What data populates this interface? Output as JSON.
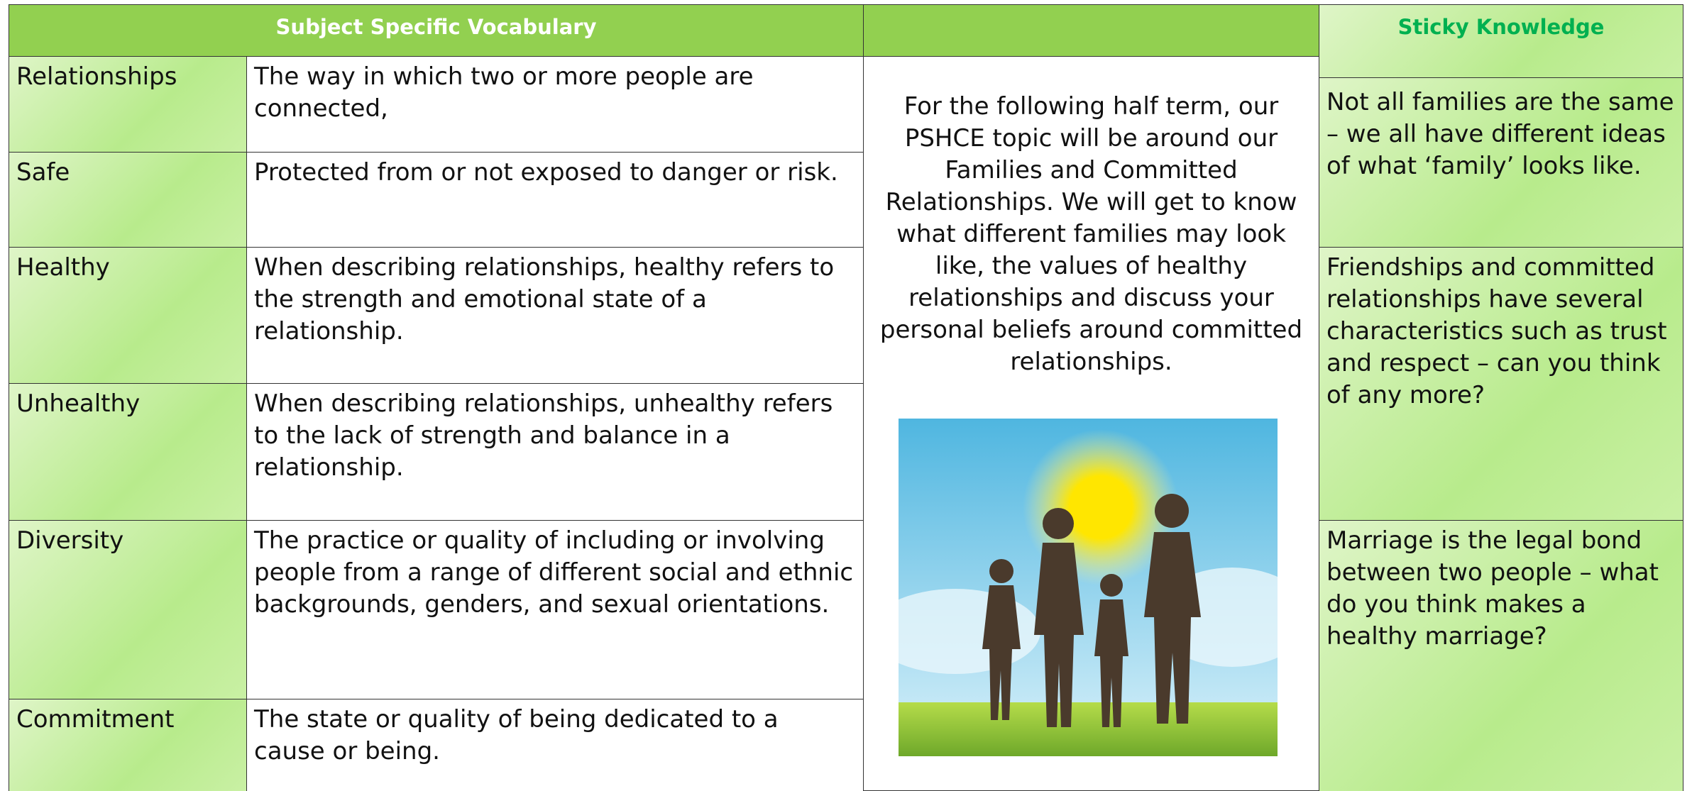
{
  "header": {
    "vocab_title": "Subject Specific Vocabulary",
    "knowledge_title": "Sticky Knowledge"
  },
  "vocabulary": [
    {
      "term": "Relationships",
      "definition": "The way in which two or more people are connected,"
    },
    {
      "term": "Safe",
      "definition": "Protected from or not exposed to danger or risk."
    },
    {
      "term": "Healthy",
      "definition": "When describing relationships, healthy refers to the strength and emotional state of a relationship."
    },
    {
      "term": "Unhealthy",
      "definition": "When describing relationships, unhealthy refers to the lack of strength and balance in a relationship."
    },
    {
      "term": "Diversity",
      "definition": "The practice or quality of including or involving people from a range of different social and ethnic backgrounds, genders, and sexual orientations."
    },
    {
      "term": "Commitment",
      "definition": "The state or quality of being dedicated to a cause or being."
    }
  ],
  "intro": "For the following half term, our PSHCE topic will be around our Families and Committed Relationships. We will get to know what different families may look like, the values of healthy relationships and discuss your personal beliefs around committed relationships.",
  "knowledge": [
    "Not all families are the same – we all have different ideas of what ‘family’ looks like.",
    "Friendships and committed relationships have several characteristics such as trust and respect – can you think of any more?",
    "Marriage is the legal bond between two people – what do you think makes a healthy marriage?"
  ]
}
